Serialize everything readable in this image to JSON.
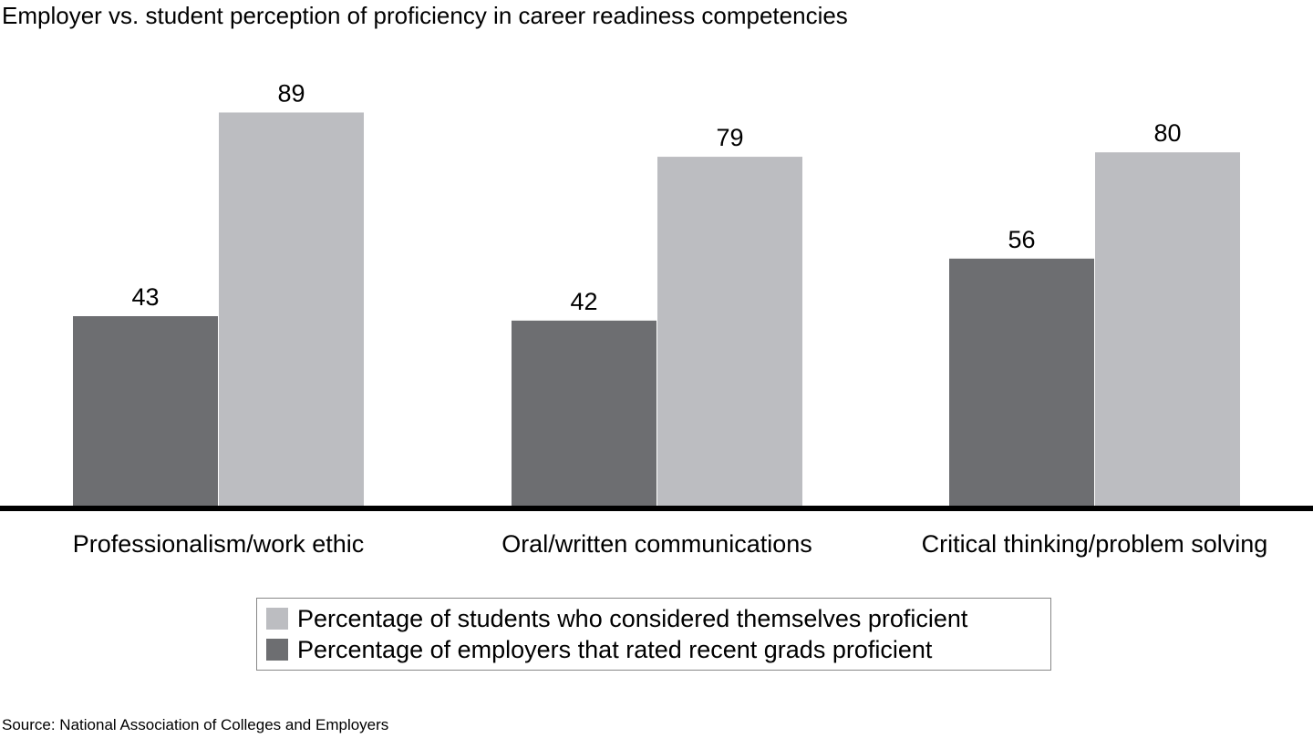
{
  "chart_data": {
    "type": "bar",
    "title": "Employer vs. student perception of proficiency in career readiness competencies",
    "categories": [
      "Professionalism/work ethic",
      "Oral/written communications",
      "Critical thinking/problem solving"
    ],
    "series": [
      {
        "name": "Percentage of employers that rated recent grads proficient",
        "values": [
          43,
          42,
          56
        ],
        "color": "#6d6e71"
      },
      {
        "name": "Percentage of students who considered themselves proficient",
        "values": [
          89,
          79,
          80
        ],
        "color": "#bcbdc1"
      }
    ],
    "ylim": [
      0,
      100
    ],
    "grid": false,
    "legend": "bottom",
    "source": "Source: National Association of Colleges and Employers"
  }
}
